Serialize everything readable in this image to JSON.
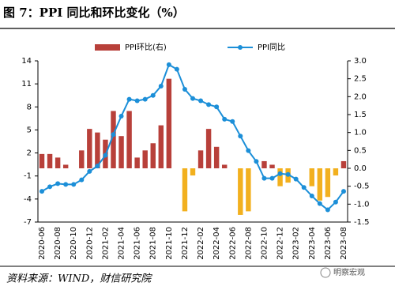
{
  "chart_data": {
    "type": "combo",
    "title": "图 7：PPI 同比和环比变化（%）",
    "categories": [
      "2020-06",
      null,
      "2020-08",
      null,
      "2020-10",
      null,
      "2020-12",
      null,
      "2021-02",
      null,
      "2021-04",
      null,
      "2021-06",
      null,
      "2021-08",
      null,
      "2021-10",
      null,
      "2021-12",
      null,
      "2022-02",
      null,
      "2022-04",
      null,
      "2022-06",
      null,
      "2022-08",
      null,
      "2022-10",
      null,
      "2022-12",
      null,
      "2023-02",
      null,
      "2023-04",
      null,
      "2023-06",
      null,
      "2023-08"
    ],
    "series": [
      {
        "name": "PPI环比(右)",
        "type": "bar",
        "axis": "y2",
        "color": "#b8403a",
        "negative_color": "#f2b01e",
        "values": [
          0.4,
          0.4,
          0.3,
          0.1,
          0.0,
          0.5,
          1.1,
          1.0,
          0.8,
          1.6,
          0.9,
          1.6,
          0.3,
          0.5,
          0.7,
          1.2,
          2.5,
          0.0,
          -1.2,
          -0.2,
          0.5,
          1.1,
          0.6,
          0.1,
          0.0,
          -1.3,
          -1.2,
          0.0,
          0.2,
          0.1,
          -0.5,
          -0.4,
          0.0,
          0.0,
          -0.5,
          -0.9,
          -0.8,
          -0.2,
          0.2
        ]
      },
      {
        "name": "PPI同比",
        "type": "line",
        "axis": "y",
        "color": "#1c8fd8",
        "values": [
          -3.0,
          -2.4,
          -2.0,
          -2.1,
          -2.1,
          -1.5,
          -0.4,
          0.3,
          1.7,
          4.4,
          6.8,
          9.0,
          8.8,
          9.0,
          9.5,
          10.7,
          13.5,
          12.9,
          10.3,
          9.1,
          8.8,
          8.3,
          8.0,
          6.4,
          6.1,
          4.2,
          2.3,
          0.9,
          -1.3,
          -1.3,
          -0.7,
          -0.8,
          -1.4,
          -2.5,
          -3.6,
          -4.6,
          -5.4,
          -4.4,
          -3.0
        ]
      }
    ],
    "ylim": [
      -7,
      14
    ],
    "yticks": [
      -7,
      -4,
      -1,
      2,
      5,
      8,
      11,
      14
    ],
    "y2lim": [
      -1.5,
      3.0
    ],
    "y2ticks": [
      -1.5,
      {
        "value": -1.0,
        "label": "-1.0"
      },
      -0.5,
      {
        "value": 0.0,
        "label": "0.0"
      },
      0.5,
      {
        "value": 1.0,
        "label": "1.0"
      },
      1.5,
      {
        "value": 2.0,
        "label": "2.0"
      },
      2.5,
      {
        "value": 3.0,
        "label": "3.0"
      }
    ],
    "grid": false
  },
  "source": "资料来源：WIND，财信研究院",
  "watermark": "明察宏观"
}
